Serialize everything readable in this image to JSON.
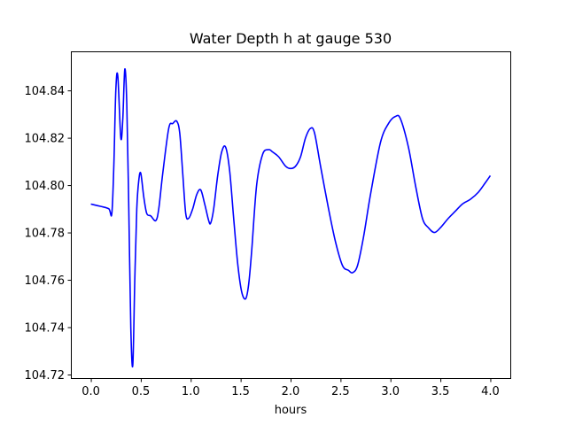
{
  "chart_data": {
    "type": "line",
    "title": "Water Depth h at gauge 530",
    "xlabel": "hours",
    "ylabel": "",
    "xlim": [
      -0.2,
      4.2
    ],
    "ylim": [
      104.7185,
      104.8565
    ],
    "grid": false,
    "legend": "none",
    "xticks": [
      0.0,
      0.5,
      1.0,
      1.5,
      2.0,
      2.5,
      3.0,
      3.5,
      4.0
    ],
    "xtick_labels": [
      "0.0",
      "0.5",
      "1.0",
      "1.5",
      "2.0",
      "2.5",
      "3.0",
      "3.5",
      "4.0"
    ],
    "yticks": [
      104.72,
      104.74,
      104.76,
      104.78,
      104.8,
      104.82,
      104.84
    ],
    "ytick_labels": [
      "104.72",
      "104.74",
      "104.76",
      "104.78",
      "104.80",
      "104.82",
      "104.84"
    ],
    "series": [
      {
        "color": "#0000ff",
        "x": [
          0.0,
          0.1,
          0.18,
          0.21,
          0.23,
          0.25,
          0.27,
          0.3,
          0.32,
          0.34,
          0.36,
          0.38,
          0.4,
          0.42,
          0.44,
          0.46,
          0.48,
          0.5,
          0.53,
          0.56,
          0.6,
          0.65,
          0.68,
          0.72,
          0.78,
          0.82,
          0.86,
          0.89,
          0.92,
          0.95,
          0.98,
          1.02,
          1.06,
          1.1,
          1.14,
          1.18,
          1.2,
          1.23,
          1.27,
          1.31,
          1.35,
          1.39,
          1.43,
          1.47,
          1.51,
          1.55,
          1.58,
          1.61,
          1.66,
          1.72,
          1.78,
          1.82,
          1.88,
          1.95,
          2.0,
          2.05,
          2.1,
          2.15,
          2.2,
          2.24,
          2.3,
          2.38,
          2.45,
          2.52,
          2.58,
          2.62,
          2.67,
          2.73,
          2.8,
          2.9,
          2.98,
          3.05,
          3.1,
          3.18,
          3.25,
          3.32,
          3.38,
          3.44,
          3.5,
          3.58,
          3.65,
          3.72,
          3.8,
          3.88,
          3.95,
          4.0
        ],
        "values": [
          104.792,
          104.791,
          104.79,
          104.788,
          104.808,
          104.84,
          104.846,
          104.82,
          104.828,
          104.849,
          104.834,
          104.79,
          104.74,
          104.724,
          104.76,
          104.79,
          104.802,
          104.805,
          104.795,
          104.788,
          104.787,
          104.785,
          104.79,
          104.805,
          104.824,
          104.826,
          104.827,
          104.822,
          104.805,
          104.788,
          104.786,
          104.79,
          104.796,
          104.798,
          104.792,
          104.785,
          104.784,
          104.79,
          104.804,
          104.814,
          104.816,
          104.806,
          104.786,
          104.767,
          104.755,
          104.752,
          104.758,
          104.772,
          104.8,
          104.813,
          104.815,
          104.814,
          104.812,
          104.808,
          104.807,
          104.808,
          104.812,
          104.82,
          104.824,
          104.822,
          104.808,
          104.79,
          104.776,
          104.766,
          104.764,
          104.763,
          104.766,
          104.778,
          104.796,
          104.818,
          104.826,
          104.829,
          104.828,
          104.816,
          104.8,
          104.786,
          104.782,
          104.78,
          104.782,
          104.786,
          104.789,
          104.792,
          104.794,
          104.797,
          104.801,
          104.804
        ]
      }
    ]
  }
}
